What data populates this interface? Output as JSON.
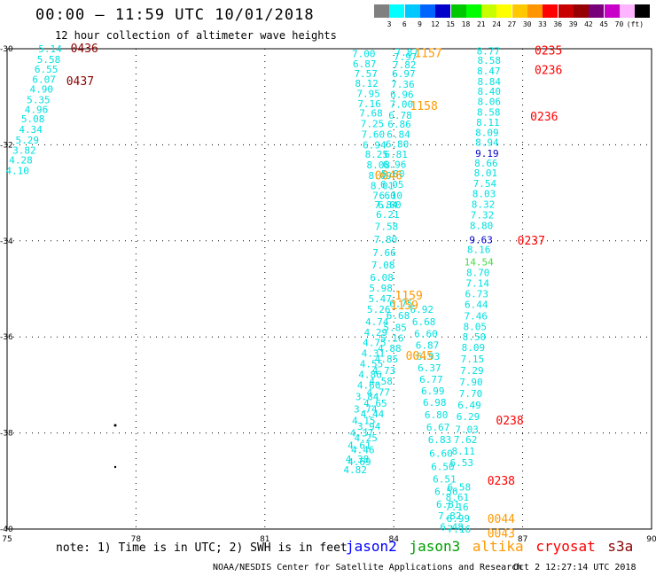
{
  "header": {
    "title": "00:00 – 11:59 UTC 10/01/2018",
    "subtitle": "12 hour collection of altimeter wave heights"
  },
  "colorbar": {
    "colors": [
      "#808080",
      "#00ffff",
      "#00c8ff",
      "#0064ff",
      "#0000c8",
      "#00c800",
      "#00ff00",
      "#c8ff00",
      "#ffff00",
      "#ffc800",
      "#ff9600",
      "#ff0000",
      "#c80000",
      "#960000",
      "#780078",
      "#c800c8",
      "#ffb4ff",
      "#000000"
    ],
    "ticks": [
      "3",
      "6",
      "9",
      "12",
      "15",
      "18",
      "21",
      "24",
      "27",
      "30",
      "33",
      "36",
      "39",
      "42",
      "45",
      "70",
      "(ft)"
    ]
  },
  "note": "note: 1) Time is in UTC; 2) SWH is in feet",
  "legend": [
    {
      "label": "jason2",
      "color": "#0000ff"
    },
    {
      "label": "jason3",
      "color": "#00a000"
    },
    {
      "label": "altika",
      "color": "#ff9900"
    },
    {
      "label": "cryosat",
      "color": "#ff0000"
    },
    {
      "label": "s3a",
      "color": "#8b0000"
    }
  ],
  "footer": {
    "left": "NOAA/NESDIS Center for Satellite Applications and Research",
    "right": "Oct  2 12:27:14 UTC 2018"
  },
  "chart_data": {
    "type": "scatter",
    "xlim": [
      75,
      90
    ],
    "ylim": [
      -40,
      -30
    ],
    "xticks": [
      "75",
      "78",
      "81",
      "84",
      "87",
      "90"
    ],
    "yticks": [
      "-30",
      "-32",
      "-34",
      "-36",
      "-38",
      "-40"
    ],
    "grid": true,
    "series": [
      {
        "name": "s3a",
        "color": "#00e0e0",
        "points": [
          [
            76.0,
            -30.0,
            "5.14"
          ],
          [
            75.97,
            -30.22,
            "5.58"
          ],
          [
            75.91,
            -30.42,
            "6.55"
          ],
          [
            75.86,
            -30.64,
            "6.07"
          ],
          [
            75.8,
            -30.84,
            "4.90"
          ],
          [
            75.73,
            -31.06,
            "5.35"
          ],
          [
            75.68,
            -31.26,
            "4.96"
          ],
          [
            75.6,
            -31.46,
            "5.08"
          ],
          [
            75.55,
            -31.68,
            "4.34"
          ],
          [
            75.47,
            -31.9,
            "5.29"
          ],
          [
            75.4,
            -32.11,
            "3.82"
          ],
          [
            75.32,
            -32.32,
            "4.28"
          ],
          [
            75.24,
            -32.54,
            "4.10"
          ]
        ]
      },
      {
        "name": "s3a",
        "color": "#00e0e0",
        "points": [
          [
            83.3,
            -30.1,
            "7.00"
          ],
          [
            83.32,
            -30.31,
            "6.87"
          ],
          [
            83.35,
            -30.52,
            "7.57"
          ],
          [
            83.37,
            -30.72,
            "8.12"
          ],
          [
            83.41,
            -30.93,
            "7.95"
          ],
          [
            83.43,
            -31.14,
            "7.16"
          ],
          [
            83.47,
            -31.34,
            "7.68"
          ],
          [
            83.5,
            -31.56,
            "7.25"
          ],
          [
            83.52,
            -31.78,
            "7.60"
          ],
          [
            83.55,
            -32.0,
            "6.94"
          ],
          [
            83.6,
            -32.2,
            "8.25"
          ],
          [
            83.64,
            -32.42,
            "8.08"
          ],
          [
            83.68,
            -32.64,
            "8.09"
          ],
          [
            83.73,
            -32.85,
            "8.01"
          ],
          [
            83.78,
            -33.05,
            "7.60"
          ],
          [
            83.82,
            -33.25,
            "7.84"
          ]
        ]
      },
      {
        "name": "s3a",
        "color": "#00e0e0",
        "points": [
          [
            84.3,
            -30.07,
            "7.87"
          ],
          [
            84.27,
            -30.17,
            "7.97"
          ],
          [
            84.25,
            -30.33,
            "7.82"
          ],
          [
            84.23,
            -30.52,
            "6.97"
          ],
          [
            84.21,
            -30.74,
            "7.36"
          ],
          [
            84.19,
            -30.95,
            "6.96"
          ],
          [
            84.18,
            -31.15,
            "7.00"
          ],
          [
            84.15,
            -31.38,
            "6.78"
          ],
          [
            84.13,
            -31.57,
            "6.86"
          ],
          [
            84.11,
            -31.78,
            "6.84"
          ],
          [
            84.08,
            -31.98,
            "6.80"
          ],
          [
            84.05,
            -32.2,
            "6.81"
          ],
          [
            84.02,
            -32.41,
            "6.96"
          ],
          [
            83.98,
            -32.6,
            "5.80"
          ],
          [
            83.96,
            -32.82,
            "6.05"
          ],
          [
            83.93,
            -33.05,
            "6.10"
          ],
          [
            83.9,
            -33.25,
            "6.00"
          ],
          [
            83.86,
            -33.45,
            "6.21"
          ],
          [
            83.83,
            -33.7,
            "7.58"
          ],
          [
            83.81,
            -33.97,
            "7.80"
          ],
          [
            83.78,
            -34.24,
            "7.66"
          ],
          [
            83.75,
            -34.5,
            "7.08"
          ],
          [
            83.72,
            -34.76,
            "6.08"
          ],
          [
            83.7,
            -34.98,
            "5.98"
          ],
          [
            83.68,
            -35.2,
            "5.47"
          ],
          [
            83.65,
            -35.42,
            "5.26"
          ],
          [
            83.61,
            -35.68,
            "4.74"
          ],
          [
            83.58,
            -35.9,
            "4.29"
          ],
          [
            83.55,
            -36.12,
            "4.75"
          ],
          [
            83.52,
            -36.34,
            "4.31"
          ],
          [
            83.48,
            -36.56,
            "4.55"
          ],
          [
            83.45,
            -36.78,
            "4.86"
          ],
          [
            83.42,
            -37.0,
            "4.60"
          ],
          [
            83.38,
            -37.24,
            "3.84"
          ],
          [
            83.34,
            -37.5,
            "3.74"
          ],
          [
            83.3,
            -37.74,
            "4.15"
          ],
          [
            83.25,
            -38.0,
            "4.37"
          ],
          [
            83.2,
            -38.26,
            "4.61"
          ],
          [
            83.15,
            -38.54,
            "4.38"
          ],
          [
            83.1,
            -38.76,
            "4.82"
          ]
        ]
      },
      {
        "name": "s3a",
        "color": "#00e0e0",
        "points": [
          [
            83.2,
            -38.6,
            "4.69"
          ],
          [
            83.28,
            -38.35,
            "4.46"
          ],
          [
            83.35,
            -38.1,
            "4.25"
          ],
          [
            83.42,
            -37.86,
            "3.94"
          ],
          [
            83.5,
            -37.6,
            "4.44"
          ],
          [
            83.57,
            -37.38,
            "4.65"
          ],
          [
            83.64,
            -37.15,
            "4.77"
          ],
          [
            83.7,
            -36.92,
            "4.58"
          ],
          [
            83.77,
            -36.7,
            "4.73"
          ],
          [
            83.83,
            -36.46,
            "4.85"
          ],
          [
            83.9,
            -36.24,
            "4.88"
          ],
          [
            83.96,
            -36.02,
            "5.16"
          ],
          [
            84.03,
            -35.8,
            "5.85"
          ],
          [
            84.1,
            -35.55,
            "6.68"
          ],
          [
            84.17,
            -35.3,
            "6.75"
          ]
        ]
      },
      {
        "name": "s3a",
        "color": "#00e0e0",
        "points": [
          [
            84.65,
            -35.42,
            "6.92"
          ],
          [
            84.7,
            -35.68,
            "6.68"
          ],
          [
            84.75,
            -35.93,
            "6.60"
          ],
          [
            84.78,
            -36.17,
            "6.87"
          ],
          [
            84.8,
            -36.4,
            "6.93"
          ],
          [
            84.83,
            -36.64,
            "6.37"
          ],
          [
            84.87,
            -36.88,
            "6.77"
          ],
          [
            84.91,
            -37.12,
            "6.99"
          ],
          [
            84.95,
            -37.36,
            "6.98"
          ],
          [
            84.99,
            -37.62,
            "6.80"
          ],
          [
            85.03,
            -37.88,
            "6.67"
          ],
          [
            85.07,
            -38.14,
            "6.83"
          ],
          [
            85.1,
            -38.42,
            "6.60"
          ],
          [
            85.14,
            -38.7,
            "6.50"
          ],
          [
            85.18,
            -38.96,
            "6.51"
          ],
          [
            85.22,
            -39.22,
            "6.56"
          ],
          [
            85.26,
            -39.48,
            "6.81"
          ],
          [
            85.3,
            -39.72,
            "7.82"
          ],
          [
            85.35,
            -39.95,
            "6.48"
          ]
        ]
      },
      {
        "name": "s3a",
        "color": "#00e0e0",
        "points": [
          [
            86.2,
            -30.05,
            "8.77"
          ],
          [
            86.22,
            -30.24,
            "8.58"
          ],
          [
            86.21,
            -30.46,
            "8.47"
          ],
          [
            86.22,
            -30.68,
            "8.84"
          ],
          [
            86.22,
            -30.89,
            "8.40"
          ],
          [
            86.22,
            -31.1,
            "8.06"
          ],
          [
            86.21,
            -31.32,
            "8.58"
          ],
          [
            86.19,
            -31.53,
            "8.11"
          ],
          [
            86.17,
            -31.74,
            "8.09"
          ],
          [
            86.17,
            -31.95,
            "8.94"
          ],
          [
            86.15,
            -32.38,
            "8.66"
          ],
          [
            86.14,
            -32.58,
            "8.01"
          ],
          [
            86.12,
            -32.8,
            "7.54"
          ],
          [
            86.1,
            -33.02,
            "8.03"
          ],
          [
            86.08,
            -33.24,
            "8.32"
          ],
          [
            86.06,
            -33.46,
            "7.32"
          ],
          [
            86.04,
            -33.68,
            "8.80"
          ],
          [
            85.98,
            -34.18,
            "8.16"
          ],
          [
            85.96,
            -34.66,
            "8.70"
          ],
          [
            85.95,
            -34.88,
            "7.14"
          ],
          [
            85.93,
            -35.1,
            "6.73"
          ],
          [
            85.92,
            -35.32,
            "6.44"
          ],
          [
            85.91,
            -35.56,
            "7.46"
          ],
          [
            85.89,
            -35.78,
            "8.05"
          ],
          [
            85.87,
            -36.0,
            "8.50"
          ],
          [
            85.85,
            -36.22,
            "8.09"
          ],
          [
            85.83,
            -36.46,
            "7.15"
          ],
          [
            85.82,
            -36.7,
            "7.29"
          ],
          [
            85.8,
            -36.94,
            "7.90"
          ],
          [
            85.79,
            -37.18,
            "7.70"
          ],
          [
            85.76,
            -37.42,
            "6.49"
          ],
          [
            85.73,
            -37.66,
            "6.29"
          ],
          [
            85.7,
            -37.92,
            "7.03"
          ],
          [
            85.67,
            -38.14,
            "7.62"
          ],
          [
            85.62,
            -38.38,
            "8.11"
          ],
          [
            85.58,
            -38.62,
            "6.53"
          ],
          [
            85.52,
            -39.12,
            "6.58"
          ],
          [
            85.48,
            -39.34,
            "8.61"
          ],
          [
            85.47,
            -39.54,
            "7.16"
          ],
          [
            85.5,
            -39.78,
            "6.99"
          ],
          [
            85.52,
            -40.0,
            "7.16"
          ]
        ]
      },
      {
        "name": "jason2",
        "color": "#0000cc",
        "points": [
          [
            86.17,
            -32.18,
            "9.19"
          ],
          [
            86.03,
            -33.98,
            "9.63"
          ]
        ]
      },
      {
        "name": "jason3",
        "color": "#44dd44",
        "points": [
          [
            85.98,
            -34.44,
            "14.54"
          ]
        ]
      },
      {
        "name": "altika",
        "color": "#ff9900",
        "points": [
          [
            84.8,
            -30.1,
            "1157"
          ],
          [
            84.7,
            -31.2,
            "1158"
          ],
          [
            83.88,
            -32.65,
            "0046"
          ],
          [
            84.35,
            -35.15,
            "1159"
          ],
          [
            84.25,
            -35.35,
            "1159"
          ],
          [
            84.6,
            -36.4,
            "0045"
          ],
          [
            86.5,
            -39.8,
            "0044"
          ],
          [
            86.5,
            -40.1,
            "0043"
          ]
        ]
      },
      {
        "name": "cryosat",
        "color": "#ff0000",
        "points": [
          [
            87.6,
            -30.05,
            "0235"
          ],
          [
            87.6,
            -30.45,
            "0236"
          ],
          [
            87.5,
            -31.42,
            "0236"
          ],
          [
            87.2,
            -34.0,
            "0237"
          ],
          [
            86.7,
            -37.75,
            "0238"
          ],
          [
            86.5,
            -39.0,
            "0238"
          ]
        ]
      },
      {
        "name": "s3a",
        "color": "#8b0000",
        "points": [
          [
            76.8,
            -30.0,
            "0436"
          ],
          [
            76.7,
            -30.68,
            "0437"
          ]
        ]
      }
    ]
  }
}
